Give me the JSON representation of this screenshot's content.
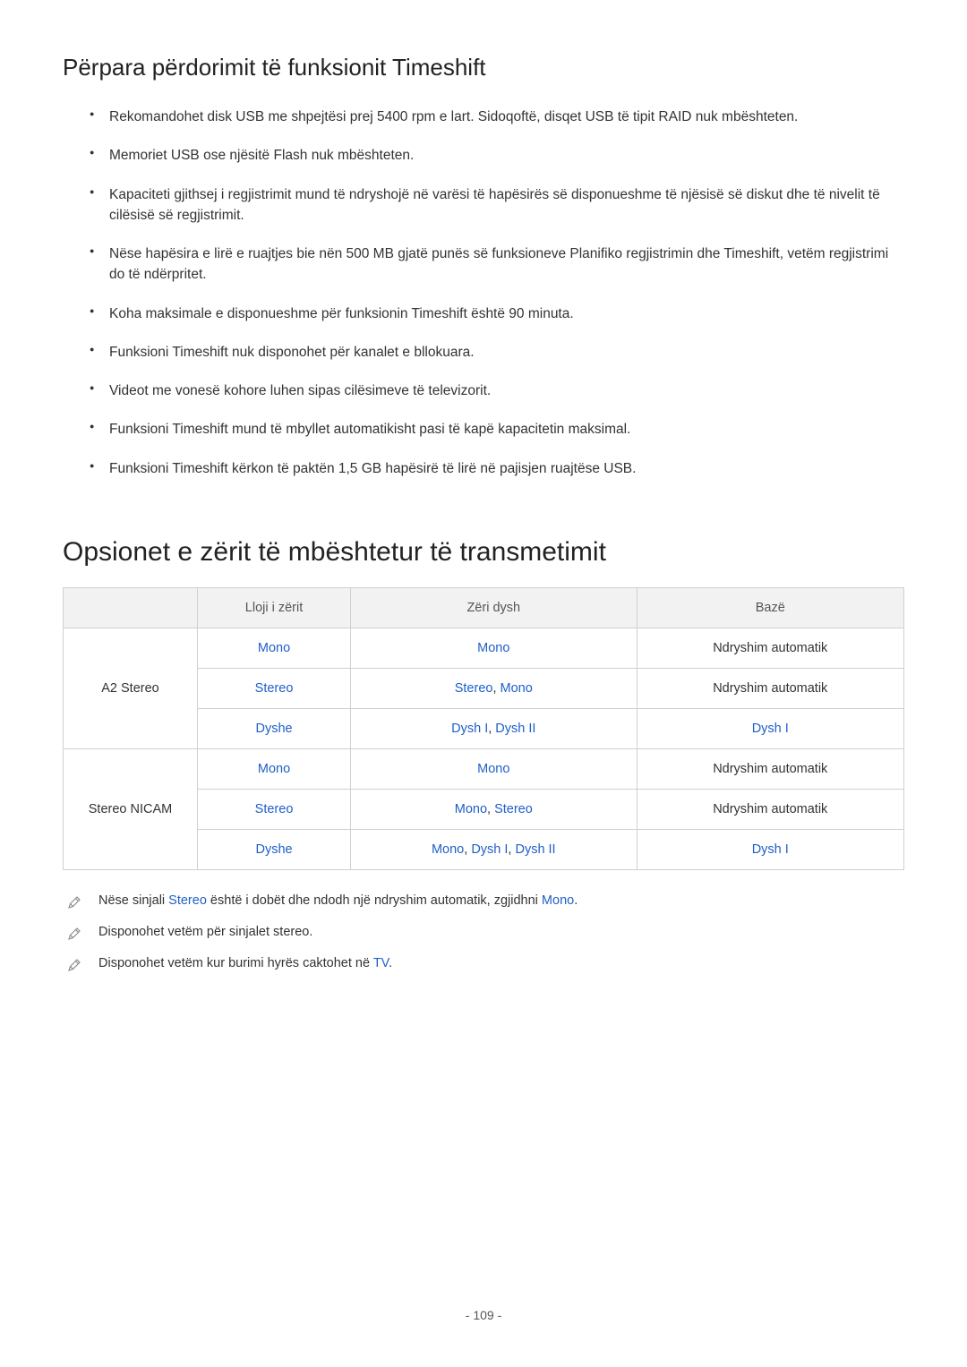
{
  "section1": {
    "title": "Përpara përdorimit të funksionit Timeshift",
    "bullets": [
      "Rekomandohet disk USB me shpejtësi prej 5400 rpm e lart. Sidoqoftë, disqet USB të tipit RAID nuk mbështeten.",
      "Memoriet USB ose njësitë Flash nuk mbështeten.",
      "Kapaciteti gjithsej i regjistrimit mund të ndryshojë në varësi të hapësirës së disponueshme të njësisë së diskut dhe të nivelit të cilësisë së regjistrimit.",
      "Nëse hapësira e lirë e ruajtjes bie nën 500 MB gjatë punës së funksioneve Planifiko regjistrimin dhe Timeshift, vetëm regjistrimi do të ndërpritet.",
      "Koha maksimale e disponueshme për funksionin Timeshift është 90 minuta.",
      "Funksioni Timeshift nuk disponohet për kanalet e bllokuara.",
      "Videot me vonesë kohore luhen sipas cilësimeve të televizorit.",
      "Funksioni Timeshift mund të mbyllet automatikisht pasi të kapë kapacitetin maksimal.",
      "Funksioni Timeshift kërkon të paktën 1,5 GB hapësirë të lirë në pajisjen ruajtëse USB."
    ]
  },
  "section2": {
    "title": "Opsionet e zërit të mbështetur të transmetimit",
    "table": {
      "headers": [
        "",
        "Lloji i zërit",
        "Zëri dysh",
        "Bazë"
      ],
      "rows": [
        {
          "label": "A2 Stereo",
          "cells": [
            {
              "c1": {
                "text": "Mono",
                "color": "blue"
              },
              "c2": {
                "text": "Mono",
                "color": "blue"
              },
              "c3": {
                "text": "Ndryshim automatik",
                "color": "black"
              }
            },
            {
              "c1": {
                "text": "Stereo",
                "color": "blue"
              },
              "c2": {
                "parts": [
                  {
                    "text": "Stereo",
                    "color": "blue"
                  },
                  {
                    "text": ", ",
                    "color": "black"
                  },
                  {
                    "text": "Mono",
                    "color": "blue"
                  }
                ]
              },
              "c3": {
                "text": "Ndryshim automatik",
                "color": "black"
              }
            },
            {
              "c1": {
                "text": "Dyshe",
                "color": "blue"
              },
              "c2": {
                "parts": [
                  {
                    "text": "Dysh I",
                    "color": "blue"
                  },
                  {
                    "text": ", ",
                    "color": "black"
                  },
                  {
                    "text": "Dysh II",
                    "color": "blue"
                  }
                ]
              },
              "c3": {
                "text": "Dysh I",
                "color": "blue"
              }
            }
          ]
        },
        {
          "label": "Stereo NICAM",
          "cells": [
            {
              "c1": {
                "text": "Mono",
                "color": "blue"
              },
              "c2": {
                "text": "Mono",
                "color": "blue"
              },
              "c3": {
                "text": "Ndryshim automatik",
                "color": "black"
              }
            },
            {
              "c1": {
                "text": "Stereo",
                "color": "blue"
              },
              "c2": {
                "parts": [
                  {
                    "text": "Mono",
                    "color": "blue"
                  },
                  {
                    "text": ", ",
                    "color": "black"
                  },
                  {
                    "text": "Stereo",
                    "color": "blue"
                  }
                ]
              },
              "c3": {
                "text": "Ndryshim automatik",
                "color": "black"
              }
            },
            {
              "c1": {
                "text": "Dyshe",
                "color": "blue"
              },
              "c2": {
                "parts": [
                  {
                    "text": "Mono",
                    "color": "blue"
                  },
                  {
                    "text": ", ",
                    "color": "black"
                  },
                  {
                    "text": "Dysh I",
                    "color": "blue"
                  },
                  {
                    "text": ", ",
                    "color": "black"
                  },
                  {
                    "text": "Dysh II",
                    "color": "blue"
                  }
                ]
              },
              "c3": {
                "text": "Dysh I",
                "color": "blue"
              }
            }
          ]
        }
      ]
    },
    "notes": [
      {
        "parts": [
          {
            "text": "Nëse sinjali ",
            "color": "black"
          },
          {
            "text": "Stereo",
            "color": "blue"
          },
          {
            "text": " është i dobët dhe ndodh një ndryshim automatik, zgjidhni ",
            "color": "black"
          },
          {
            "text": "Mono",
            "color": "blue"
          },
          {
            "text": ".",
            "color": "black"
          }
        ]
      },
      {
        "parts": [
          {
            "text": "Disponohet vetëm për sinjalet stereo.",
            "color": "black"
          }
        ]
      },
      {
        "parts": [
          {
            "text": "Disponohet vetëm kur burimi hyrës caktohet në ",
            "color": "black"
          },
          {
            "text": "TV",
            "color": "blue"
          },
          {
            "text": ".",
            "color": "black"
          }
        ]
      }
    ]
  },
  "page_number": "- 109 -"
}
